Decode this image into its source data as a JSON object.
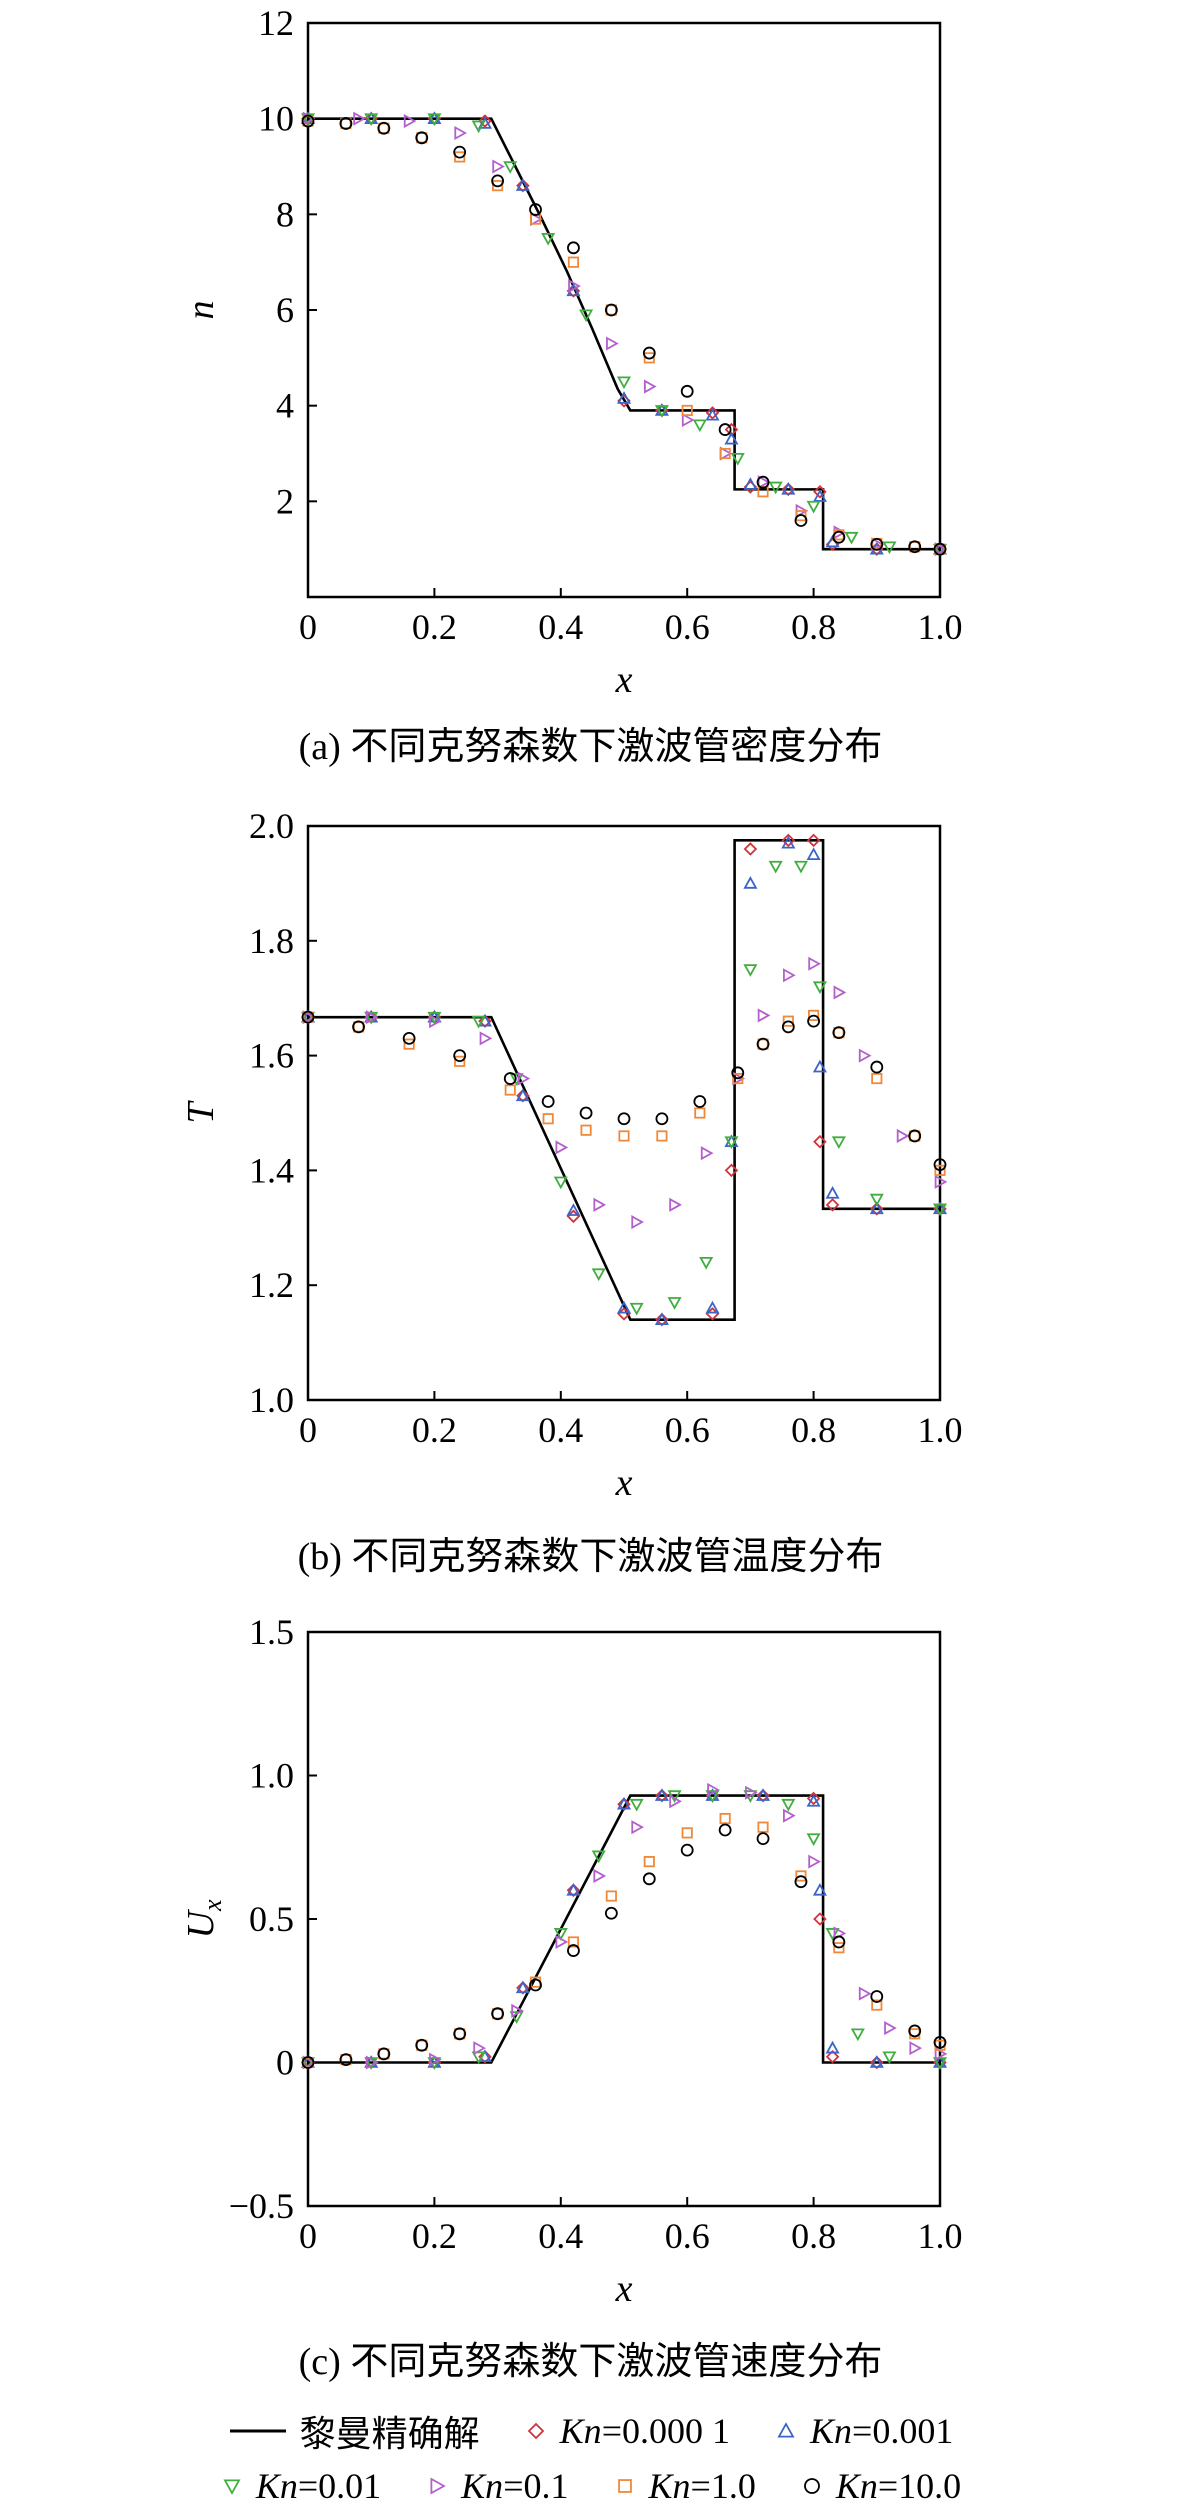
{
  "figure_captions": [
    "(a) 不同克努森数下激波管密度分布",
    "(b) 不同克努森数下激波管温度分布",
    "(c) 不同克努森数下激波管速度分布"
  ],
  "legend": [
    {
      "key": "exact",
      "text": "黎曼精确解",
      "marker": "line",
      "color": "#000000"
    },
    {
      "key": "kn00001",
      "prefix": "Kn",
      "text": "=0.000 1",
      "marker": "diamond",
      "color": "#d0343a"
    },
    {
      "key": "kn0001",
      "prefix": "Kn",
      "text": "=0.001",
      "marker": "triangle-up",
      "color": "#3a64c8"
    },
    {
      "key": "kn001",
      "prefix": "Kn",
      "text": "=0.01",
      "marker": "triangle-down",
      "color": "#3fae3f"
    },
    {
      "key": "kn01",
      "prefix": "Kn",
      "text": "=0.1",
      "marker": "triangle-right",
      "color": "#b35fcc"
    },
    {
      "key": "kn1",
      "prefix": "Kn",
      "text": "=1.0",
      "marker": "square",
      "color": "#f0883a"
    },
    {
      "key": "kn10",
      "prefix": "Kn",
      "text": "=10.0",
      "marker": "circle",
      "color": "#000000"
    }
  ],
  "chart_data": [
    {
      "type": "line",
      "xlabel": "x",
      "ylabel": "n",
      "xlim": [
        0,
        1.0
      ],
      "ylim": [
        0,
        12
      ],
      "xticks": [
        "0",
        "0.2",
        "0.4",
        "0.6",
        "0.8",
        "1.0"
      ],
      "yticks": [
        "2",
        "4",
        "6",
        "8",
        "10",
        "12"
      ],
      "ytick_values": [
        2,
        4,
        6,
        8,
        10,
        12
      ],
      "series": [
        {
          "name": "黎曼精确解",
          "x": [
            0,
            0.29,
            0.33,
            0.37,
            0.41,
            0.45,
            0.49,
            0.51,
            0.675,
            0.675,
            0.815,
            0.815,
            1.0
          ],
          "y": [
            10.0,
            10.0,
            8.95,
            7.9,
            6.8,
            5.6,
            4.35,
            3.9,
            3.9,
            2.25,
            2.25,
            1.0,
            1.0
          ]
        },
        {
          "name": "Kn=0.000 1",
          "x": [
            0.0,
            0.1,
            0.2,
            0.28,
            0.34,
            0.42,
            0.5,
            0.56,
            0.64,
            0.67,
            0.7,
            0.76,
            0.81,
            0.83,
            0.9,
            1.0
          ],
          "y": [
            10.0,
            10.0,
            10.0,
            9.95,
            8.6,
            6.4,
            4.1,
            3.9,
            3.85,
            3.5,
            2.3,
            2.25,
            2.2,
            1.1,
            1.0,
            1.0
          ]
        },
        {
          "name": "Kn=0.001",
          "x": [
            0.0,
            0.1,
            0.2,
            0.28,
            0.34,
            0.42,
            0.5,
            0.56,
            0.64,
            0.67,
            0.7,
            0.76,
            0.81,
            0.83,
            0.9,
            1.0
          ],
          "y": [
            10.0,
            10.0,
            10.0,
            9.9,
            8.6,
            6.4,
            4.15,
            3.9,
            3.8,
            3.3,
            2.35,
            2.25,
            2.1,
            1.15,
            1.0,
            1.0
          ]
        },
        {
          "name": "Kn=0.01",
          "x": [
            0.0,
            0.1,
            0.2,
            0.27,
            0.32,
            0.38,
            0.44,
            0.5,
            0.56,
            0.62,
            0.68,
            0.74,
            0.8,
            0.86,
            0.92,
            1.0
          ],
          "y": [
            10.0,
            10.0,
            10.0,
            9.85,
            9.0,
            7.5,
            5.9,
            4.5,
            3.9,
            3.6,
            2.9,
            2.3,
            1.9,
            1.25,
            1.05,
            1.0
          ]
        },
        {
          "name": "Kn=0.1",
          "x": [
            0.0,
            0.08,
            0.16,
            0.24,
            0.3,
            0.36,
            0.42,
            0.48,
            0.54,
            0.6,
            0.66,
            0.72,
            0.78,
            0.84,
            0.9,
            1.0
          ],
          "y": [
            10.0,
            10.0,
            9.95,
            9.7,
            9.0,
            7.9,
            6.5,
            5.3,
            4.4,
            3.7,
            3.0,
            2.4,
            1.8,
            1.35,
            1.1,
            1.0
          ]
        },
        {
          "name": "Kn=1.0",
          "x": [
            0.0,
            0.06,
            0.12,
            0.18,
            0.24,
            0.3,
            0.36,
            0.42,
            0.48,
            0.54,
            0.6,
            0.66,
            0.72,
            0.78,
            0.84,
            0.9,
            0.96,
            1.0
          ],
          "y": [
            9.95,
            9.9,
            9.8,
            9.6,
            9.2,
            8.6,
            7.9,
            7.0,
            6.0,
            5.0,
            3.9,
            3.0,
            2.2,
            1.7,
            1.3,
            1.12,
            1.05,
            1.0
          ]
        },
        {
          "name": "Kn=10.0",
          "x": [
            0.0,
            0.06,
            0.12,
            0.18,
            0.24,
            0.3,
            0.36,
            0.42,
            0.48,
            0.54,
            0.6,
            0.66,
            0.72,
            0.78,
            0.84,
            0.9,
            0.96,
            1.0
          ],
          "y": [
            9.95,
            9.9,
            9.8,
            9.6,
            9.3,
            8.7,
            8.1,
            7.3,
            6.0,
            5.1,
            4.3,
            3.5,
            2.4,
            1.6,
            1.25,
            1.1,
            1.05,
            1.0
          ]
        }
      ]
    },
    {
      "type": "line",
      "xlabel": "x",
      "ylabel": "T",
      "xlim": [
        0,
        1.0
      ],
      "ylim": [
        1.0,
        2.0
      ],
      "xticks": [
        "0",
        "0.2",
        "0.4",
        "0.6",
        "0.8",
        "1.0"
      ],
      "yticks": [
        "1.0",
        "1.2",
        "1.4",
        "1.6",
        "1.8",
        "2.0"
      ],
      "ytick_values": [
        1.0,
        1.2,
        1.4,
        1.6,
        1.8,
        2.0
      ],
      "series": [
        {
          "name": "黎曼精确解",
          "x": [
            0,
            0.29,
            0.51,
            0.675,
            0.675,
            0.815,
            0.815,
            1.0
          ],
          "y": [
            1.667,
            1.667,
            1.14,
            1.14,
            1.975,
            1.975,
            1.333,
            1.333
          ]
        },
        {
          "name": "Kn=0.000 1",
          "x": [
            0.0,
            0.1,
            0.2,
            0.28,
            0.34,
            0.42,
            0.5,
            0.56,
            0.64,
            0.67,
            0.7,
            0.76,
            0.8,
            0.81,
            0.83,
            0.9,
            1.0
          ],
          "y": [
            1.667,
            1.667,
            1.667,
            1.66,
            1.53,
            1.32,
            1.15,
            1.14,
            1.15,
            1.4,
            1.96,
            1.975,
            1.975,
            1.45,
            1.34,
            1.333,
            1.333
          ]
        },
        {
          "name": "Kn=0.001",
          "x": [
            0.0,
            0.1,
            0.2,
            0.28,
            0.34,
            0.42,
            0.5,
            0.56,
            0.64,
            0.67,
            0.7,
            0.76,
            0.8,
            0.81,
            0.83,
            0.9,
            1.0
          ],
          "y": [
            1.667,
            1.667,
            1.667,
            1.66,
            1.53,
            1.33,
            1.16,
            1.14,
            1.16,
            1.45,
            1.9,
            1.97,
            1.95,
            1.58,
            1.36,
            1.333,
            1.333
          ]
        },
        {
          "name": "Kn=0.01",
          "x": [
            0.0,
            0.1,
            0.2,
            0.27,
            0.33,
            0.4,
            0.46,
            0.52,
            0.58,
            0.63,
            0.67,
            0.7,
            0.74,
            0.78,
            0.81,
            0.84,
            0.9,
            1.0
          ],
          "y": [
            1.667,
            1.667,
            1.667,
            1.66,
            1.56,
            1.38,
            1.22,
            1.16,
            1.17,
            1.24,
            1.45,
            1.75,
            1.93,
            1.93,
            1.72,
            1.45,
            1.35,
            1.333
          ]
        },
        {
          "name": "Kn=0.1",
          "x": [
            0.0,
            0.1,
            0.2,
            0.28,
            0.34,
            0.4,
            0.46,
            0.52,
            0.58,
            0.63,
            0.68,
            0.72,
            0.76,
            0.8,
            0.84,
            0.88,
            0.94,
            1.0
          ],
          "y": [
            1.667,
            1.667,
            1.66,
            1.63,
            1.56,
            1.44,
            1.34,
            1.31,
            1.34,
            1.43,
            1.56,
            1.67,
            1.74,
            1.76,
            1.71,
            1.6,
            1.46,
            1.38
          ]
        },
        {
          "name": "Kn=1.0",
          "x": [
            0.0,
            0.08,
            0.16,
            0.24,
            0.32,
            0.38,
            0.44,
            0.5,
            0.56,
            0.62,
            0.68,
            0.72,
            0.76,
            0.8,
            0.84,
            0.9,
            0.96,
            1.0
          ],
          "y": [
            1.667,
            1.65,
            1.62,
            1.59,
            1.54,
            1.49,
            1.47,
            1.46,
            1.46,
            1.5,
            1.56,
            1.62,
            1.66,
            1.67,
            1.64,
            1.56,
            1.46,
            1.4
          ]
        },
        {
          "name": "Kn=10.0",
          "x": [
            0.0,
            0.08,
            0.16,
            0.24,
            0.32,
            0.38,
            0.44,
            0.5,
            0.56,
            0.62,
            0.68,
            0.72,
            0.76,
            0.8,
            0.84,
            0.9,
            0.96,
            1.0
          ],
          "y": [
            1.667,
            1.65,
            1.63,
            1.6,
            1.56,
            1.52,
            1.5,
            1.49,
            1.49,
            1.52,
            1.57,
            1.62,
            1.65,
            1.66,
            1.64,
            1.58,
            1.46,
            1.41
          ]
        }
      ]
    },
    {
      "type": "line",
      "xlabel": "x",
      "ylabel": "Ux",
      "ylabel_main": "U",
      "ylabel_sub": "x",
      "xlim": [
        0,
        1.0
      ],
      "ylim": [
        -0.5,
        1.5
      ],
      "xticks": [
        "0",
        "0.2",
        "0.4",
        "0.6",
        "0.8",
        "1.0"
      ],
      "yticks": [
        "−0.5",
        "0",
        "0.5",
        "1.0",
        "1.5"
      ],
      "ytick_values": [
        -0.5,
        0,
        0.5,
        1.0,
        1.5
      ],
      "series": [
        {
          "name": "黎曼精确解",
          "x": [
            0,
            0.29,
            0.51,
            0.815,
            0.815,
            1.0
          ],
          "y": [
            0,
            0,
            0.93,
            0.93,
            0,
            0
          ]
        },
        {
          "name": "Kn=0.000 1",
          "x": [
            0.0,
            0.1,
            0.2,
            0.28,
            0.34,
            0.42,
            0.5,
            0.56,
            0.64,
            0.72,
            0.8,
            0.81,
            0.83,
            0.9,
            1.0
          ],
          "y": [
            0,
            0,
            0,
            0.02,
            0.26,
            0.6,
            0.9,
            0.93,
            0.93,
            0.93,
            0.92,
            0.5,
            0.02,
            0,
            0
          ]
        },
        {
          "name": "Kn=0.001",
          "x": [
            0.0,
            0.1,
            0.2,
            0.28,
            0.34,
            0.42,
            0.5,
            0.56,
            0.64,
            0.72,
            0.8,
            0.81,
            0.83,
            0.9,
            1.0
          ],
          "y": [
            0,
            0,
            0,
            0.02,
            0.26,
            0.6,
            0.9,
            0.93,
            0.93,
            0.93,
            0.91,
            0.6,
            0.05,
            0,
            0
          ]
        },
        {
          "name": "Kn=0.01",
          "x": [
            0.0,
            0.1,
            0.2,
            0.27,
            0.33,
            0.4,
            0.46,
            0.52,
            0.58,
            0.64,
            0.7,
            0.76,
            0.8,
            0.83,
            0.87,
            0.92,
            1.0
          ],
          "y": [
            0,
            0,
            0,
            0.02,
            0.16,
            0.45,
            0.72,
            0.9,
            0.93,
            0.93,
            0.93,
            0.9,
            0.78,
            0.45,
            0.1,
            0.02,
            0
          ]
        },
        {
          "name": "Kn=0.1",
          "x": [
            0.0,
            0.1,
            0.2,
            0.27,
            0.33,
            0.4,
            0.46,
            0.52,
            0.58,
            0.64,
            0.7,
            0.76,
            0.8,
            0.84,
            0.88,
            0.92,
            0.96,
            1.0
          ],
          "y": [
            0,
            0,
            0.01,
            0.05,
            0.18,
            0.42,
            0.65,
            0.82,
            0.91,
            0.95,
            0.94,
            0.86,
            0.7,
            0.45,
            0.24,
            0.12,
            0.05,
            0.03
          ]
        },
        {
          "name": "Kn=1.0",
          "x": [
            0.0,
            0.06,
            0.12,
            0.18,
            0.24,
            0.3,
            0.36,
            0.42,
            0.48,
            0.54,
            0.6,
            0.66,
            0.72,
            0.78,
            0.84,
            0.9,
            0.96,
            1.0
          ],
          "y": [
            0,
            0.01,
            0.03,
            0.06,
            0.1,
            0.17,
            0.28,
            0.42,
            0.58,
            0.7,
            0.8,
            0.85,
            0.82,
            0.65,
            0.4,
            0.2,
            0.1,
            0.06
          ]
        },
        {
          "name": "Kn=10.0",
          "x": [
            0.0,
            0.06,
            0.12,
            0.18,
            0.24,
            0.3,
            0.36,
            0.42,
            0.48,
            0.54,
            0.6,
            0.66,
            0.72,
            0.78,
            0.84,
            0.9,
            0.96,
            1.0
          ],
          "y": [
            0,
            0.01,
            0.03,
            0.06,
            0.1,
            0.17,
            0.27,
            0.39,
            0.52,
            0.64,
            0.74,
            0.81,
            0.78,
            0.63,
            0.42,
            0.23,
            0.11,
            0.07
          ]
        }
      ]
    }
  ]
}
